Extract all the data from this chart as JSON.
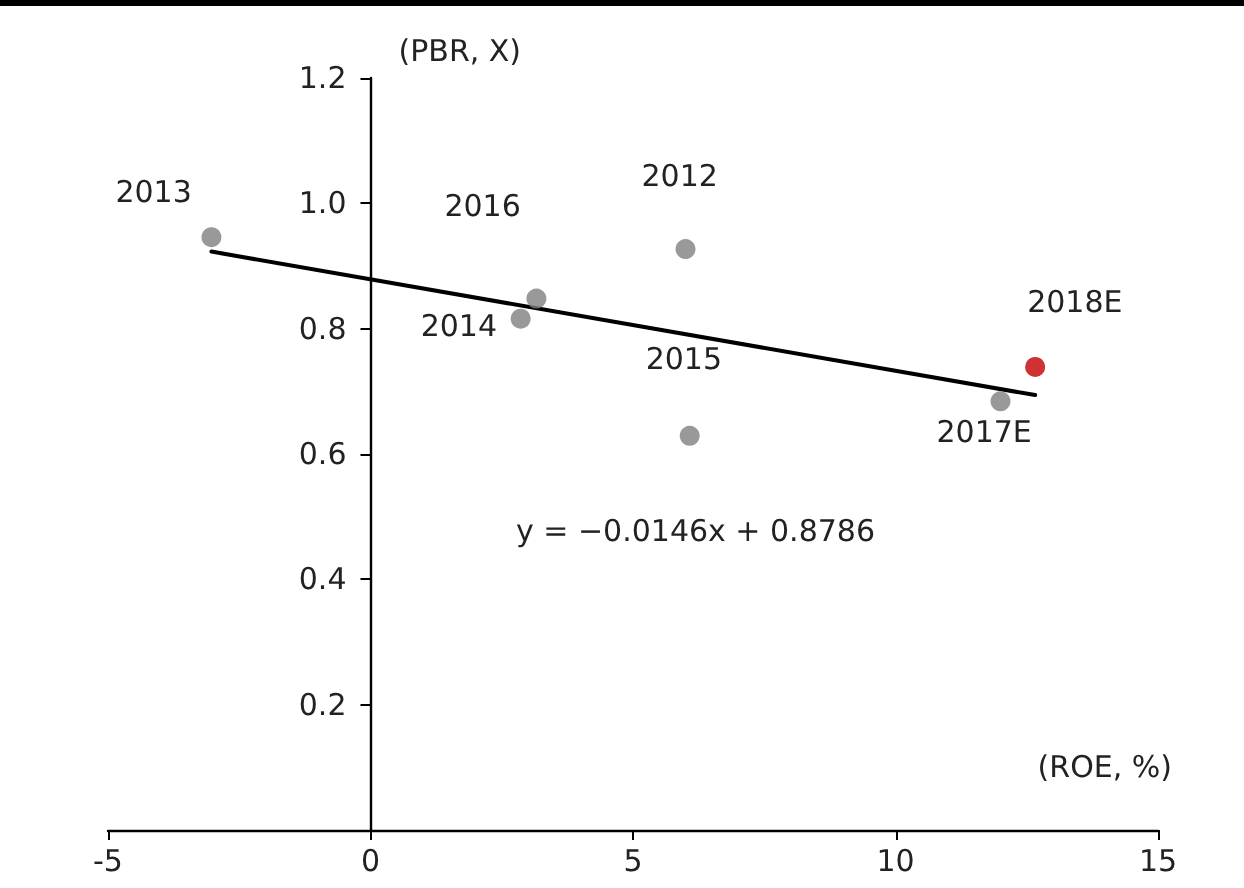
{
  "chart_data": {
    "type": "scatter",
    "xlabel": "(ROE, %)",
    "ylabel": "(PBR, X)",
    "xlim": [
      -5,
      15
    ],
    "xticks": [
      -5,
      0,
      5,
      10,
      15
    ],
    "ylim": [
      0,
      1.2
    ],
    "yticks": [
      {
        "value": 0,
        "label": null
      },
      {
        "value": 0.2,
        "label": "0.2"
      },
      {
        "value": 0.4,
        "label": "0.4"
      },
      {
        "value": 0.6,
        "label": "0.6"
      },
      {
        "value": 0.8,
        "label": "0.8"
      },
      {
        "value": 1.0,
        "label": "1.0"
      },
      {
        "value": 1.2,
        "label": "1.2"
      }
    ],
    "marker": "circle",
    "series": [
      {
        "color": "#808080",
        "x": [
          -3.03,
          3.16,
          2.86,
          6.0,
          6.08,
          12.0
        ],
        "values": [
          0.946,
          0.848,
          0.816,
          0.927,
          0.629,
          0.684
        ]
      },
      {
        "color": "#c00000",
        "x": [
          12.66
        ],
        "values": [
          0.739
        ]
      },
      {
        "type": "line",
        "color": "#000000",
        "line_style": "solid",
        "marker": "none",
        "x": [
          -3.03,
          12.66
        ],
        "values": [
          0.923,
          0.694
        ]
      }
    ],
    "annotations": [
      {
        "text": "2013",
        "x": -3.03,
        "y": 0.946
      },
      {
        "text": "2016",
        "x": 3.16,
        "y": 0.848
      },
      {
        "text": "2014",
        "x": 2.86,
        "y": 0.816
      },
      {
        "text": "2012",
        "x": 6.0,
        "y": 0.927
      },
      {
        "text": "2015",
        "x": 6.08,
        "y": 0.629
      },
      {
        "text": "2017E",
        "x": 12.0,
        "y": 0.684
      },
      {
        "text": "2018E",
        "x": 12.66,
        "y": 0.739
      },
      "y = −0.0146x + 0.8786"
    ]
  }
}
